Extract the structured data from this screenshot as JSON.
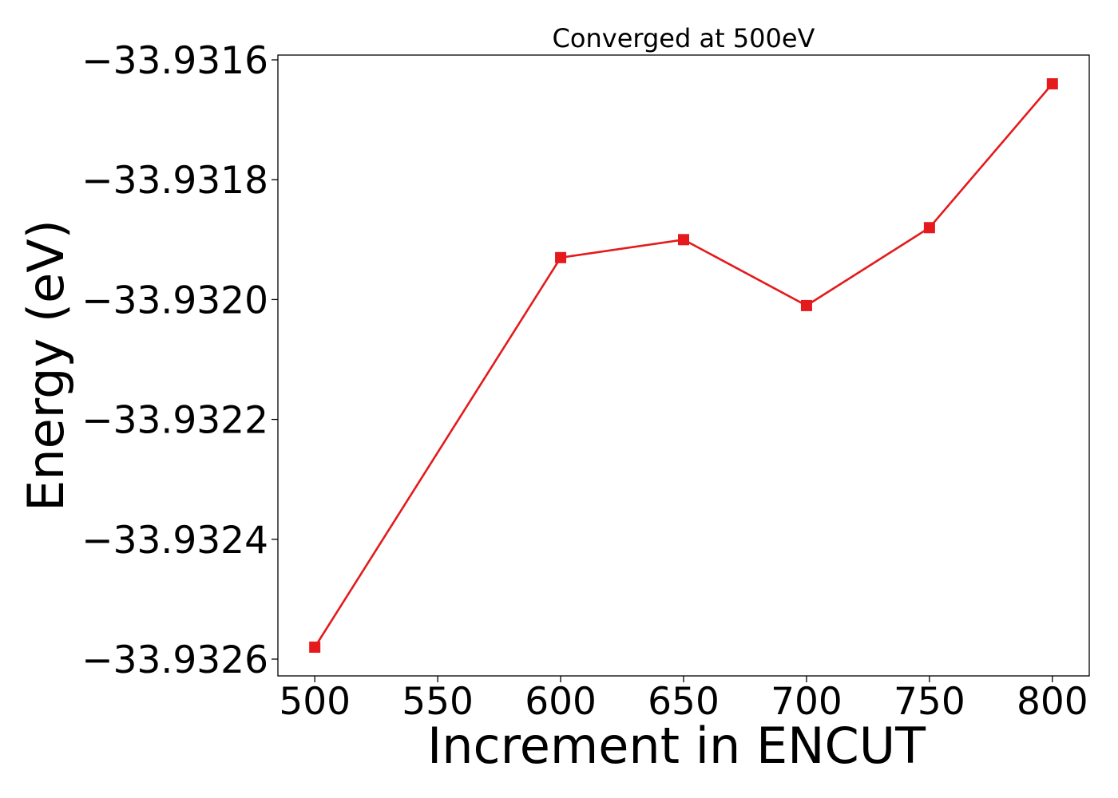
{
  "chart_data": {
    "type": "line",
    "title": "Converged at 500eV",
    "xlabel": "Increment in ENCUT",
    "ylabel": "Energy (eV)",
    "x": [
      500,
      600,
      650,
      700,
      750,
      800
    ],
    "series": [
      {
        "values": [
          -33.93258,
          -33.93193,
          -33.9319,
          -33.93201,
          -33.93188,
          -33.93164
        ],
        "color": "#e41a1c",
        "marker": "square"
      }
    ],
    "x_ticks": [
      500,
      550,
      600,
      650,
      700,
      750,
      800
    ],
    "x_tick_labels": [
      "500",
      "550",
      "600",
      "650",
      "700",
      "750",
      "800"
    ],
    "y_ticks": [
      -33.9326,
      -33.9324,
      -33.9322,
      -33.932,
      -33.9318,
      -33.9316
    ],
    "y_tick_labels": [
      "−33.9326",
      "−33.9324",
      "−33.9322",
      "−33.9320",
      "−33.9318",
      "−33.9316"
    ],
    "xlim": [
      485,
      815
    ],
    "ylim": [
      -33.932628,
      -33.931592
    ],
    "grid": false,
    "legend": "none"
  }
}
